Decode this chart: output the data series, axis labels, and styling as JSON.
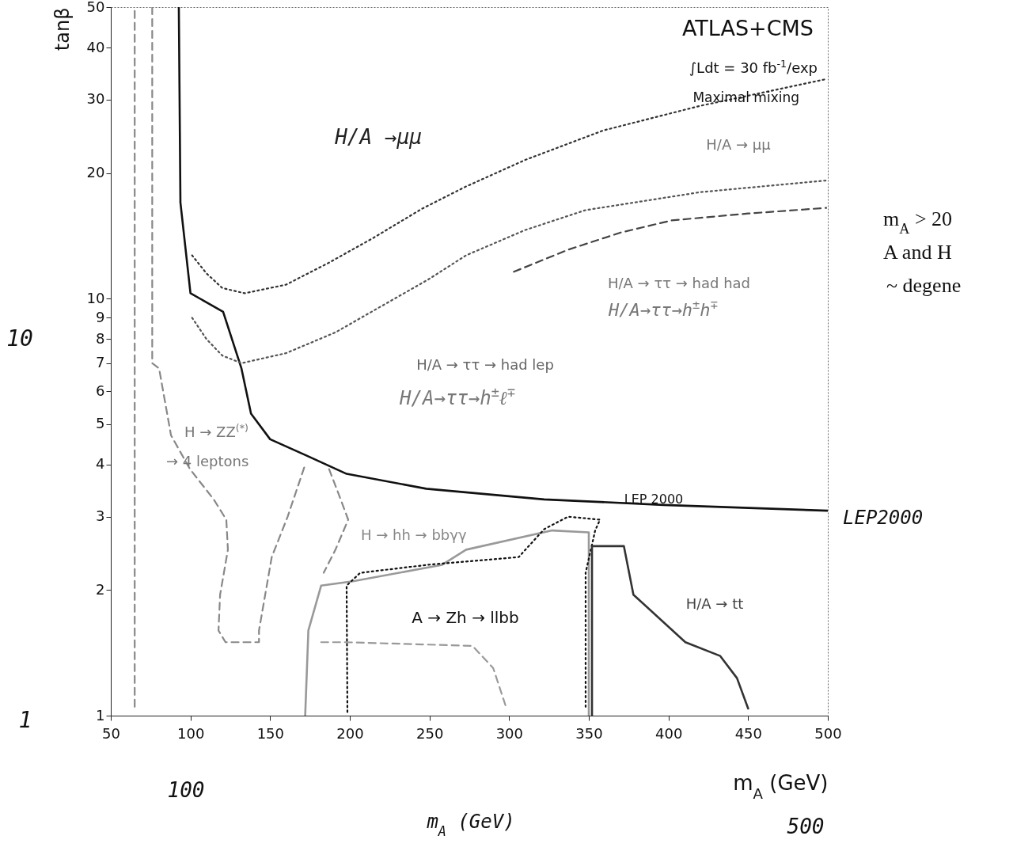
{
  "chart_data": {
    "type": "line",
    "xlabel": "m$_{A}$ (GeV)",
    "ylabel": "tanβ",
    "log": "y",
    "xlim": [
      50,
      500
    ],
    "xticks": [
      50,
      100,
      150,
      200,
      250,
      300,
      350,
      400,
      450,
      500
    ],
    "ylim": [
      1,
      50
    ],
    "yticks": [
      1,
      2,
      3,
      4,
      5,
      6,
      7,
      8,
      9,
      10,
      20,
      30,
      40,
      50
    ],
    "series": [
      {
        "color": "#111111",
        "line_style": "solid",
        "x": [
          92.7,
          93.7,
          100,
          120.5,
          132,
          138,
          150,
          173,
          198,
          248,
          322,
          397,
          500
        ],
        "values": [
          50,
          17,
          10.3,
          9.3,
          6.8,
          5.3,
          4.6,
          4.2,
          3.8,
          3.5,
          3.3,
          3.2,
          3.1
        ]
      },
      {
        "color": "#333333",
        "line_style": "dotted",
        "x": [
          101,
          110,
          120,
          134,
          160,
          187,
          215,
          245,
          272,
          310,
          359,
          420,
          499
        ],
        "values": [
          12.7,
          11.5,
          10.6,
          10.3,
          10.8,
          12.2,
          14,
          16.4,
          18.5,
          21.5,
          25.3,
          29,
          33.6
        ]
      },
      {
        "color": "#555555",
        "line_style": "dotted",
        "x": [
          101,
          110,
          120,
          132,
          160,
          191,
          220,
          249,
          273,
          310,
          348,
          420,
          499
        ],
        "values": [
          9,
          8,
          7.3,
          7,
          7.4,
          8.3,
          9.6,
          11.1,
          12.7,
          14.6,
          16.3,
          18,
          19.2
        ]
      },
      {
        "color": "#444444",
        "line_style": "dashed",
        "x": [
          303,
          337,
          370,
          402,
          450,
          499
        ],
        "values": [
          11.6,
          13.1,
          14.4,
          15.4,
          16,
          16.5
        ]
      },
      {
        "color": "#888888",
        "line_style": "dashed",
        "x": [
          65,
          65
        ],
        "values": [
          1.05,
          50
        ]
      },
      {
        "color": "#888888",
        "line_style": "dashed",
        "x": [
          76,
          76,
          80.3,
          87.8,
          99.7,
          114.6,
          122.5,
          123.5,
          118.6,
          117.6,
          122,
          143,
          143,
          151,
          161,
          172
        ],
        "values": [
          50,
          7,
          6.8,
          4.7,
          3.9,
          3.3,
          2.95,
          2.5,
          1.95,
          1.6,
          1.5,
          1.5,
          1.6,
          2.4,
          3,
          4
        ]
      },
      {
        "color": "#888888",
        "line_style": "dashed",
        "x": [
          187,
          193,
          199,
          191,
          183.6
        ],
        "values": [
          3.9,
          3.4,
          2.95,
          2.5,
          2.2
        ]
      },
      {
        "color": "#999999",
        "line_style": "dashed",
        "x": [
          182,
          197,
          277,
          290,
          298
        ],
        "values": [
          1.5,
          1.5,
          1.47,
          1.3,
          1.05
        ]
      },
      {
        "color": "#999999",
        "line_style": "solid",
        "x": [
          172,
          174,
          182,
          202,
          258,
          273,
          327,
          350,
          350
        ],
        "values": [
          1,
          1.6,
          2.05,
          2.1,
          2.3,
          2.5,
          2.78,
          2.75,
          1
        ]
      },
      {
        "color": "#111111",
        "line_style": "dotted",
        "x": [
          198.5,
          198,
          206.5,
          249,
          306,
          322,
          337,
          357,
          354,
          348,
          348
        ],
        "values": [
          1.02,
          2.05,
          2.2,
          2.3,
          2.4,
          2.8,
          3,
          2.95,
          2.78,
          2.2,
          1.05
        ]
      },
      {
        "color": "#333333",
        "line_style": "solid",
        "x": [
          352,
          352,
          372,
          378,
          410.6,
          432.5,
          443,
          450
        ],
        "values": [
          1,
          2.55,
          2.55,
          1.95,
          1.5,
          1.39,
          1.23,
          1.04
        ]
      }
    ],
    "annotations": [
      "ATLAS+CMS",
      "∫Ldt = 30 fb$^{-1}$/exp",
      "Maximal mixing",
      "10",
      "1",
      "100",
      "m$_{A}$ (GeV)",
      "500",
      "LEP2000",
      "m$_{A}$ >  20",
      "A and  H",
      "~ degene",
      "H/A → μμ",
      "H/A →μμ",
      "H/A → ττ → had had",
      "H/A→ττ→h$^{±}$h$^{∓}$",
      "H/A → ττ → had lep",
      "H/A→ττ→h$^{±}$ℓ$^{∓}$",
      "H → ZZ$^{(*)}$",
      "→ 4 leptons",
      "H → hh → bbγγ",
      "A → Zh → llbb",
      "H/A → tt",
      "LEP 2000"
    ]
  }
}
